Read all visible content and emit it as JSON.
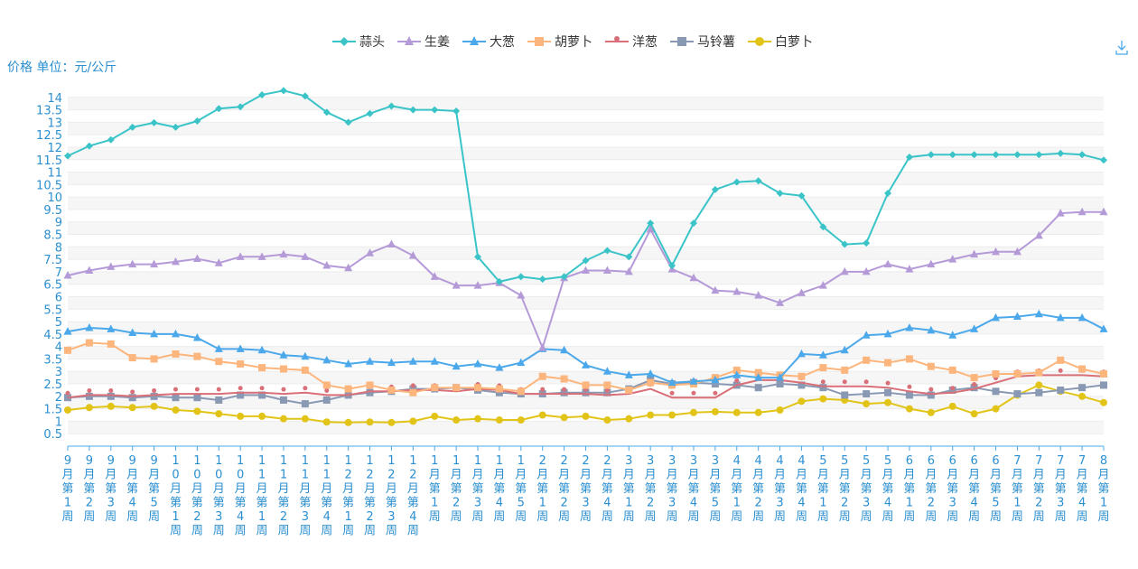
{
  "chart_data": {
    "type": "line",
    "ylabel": "价格 单位：元/公斤",
    "ylim": [
      0,
      14.5
    ],
    "yticks": [
      0.5,
      1,
      1.5,
      2,
      2.5,
      3,
      3.5,
      4,
      4.5,
      5,
      5.5,
      6,
      6.5,
      7,
      7.5,
      8,
      8.5,
      9,
      9.5,
      10,
      10.5,
      11,
      11.5,
      12,
      12.5,
      13,
      13.5,
      14
    ],
    "ytick_labels": [
      "0.5",
      "1",
      "1.5",
      "2",
      "2.5",
      "3",
      "3.5",
      "4",
      "4.5",
      "5",
      "5.5",
      "6",
      "6.5",
      "7",
      "7.5",
      "8",
      "8.5",
      "9",
      "9.5",
      "10",
      "10.5",
      "11",
      "11.5",
      "12",
      "12.5",
      "13",
      "13.5",
      "14"
    ],
    "categories": [
      "9月第1周",
      "9月第2周",
      "9月第3周",
      "9月第4周",
      "9月第5周",
      "10月第1周",
      "10月第2周",
      "10月第3周",
      "10月第4周",
      "11月第1周",
      "11月第2周",
      "11月第3周",
      "11月第4周",
      "12月第1周",
      "12月第2周",
      "12月第3周",
      "12月第4周",
      "1月第1周",
      "1月第2周",
      "1月第3周",
      "1月第4周",
      "1月第5周",
      "2月第1周",
      "2月第2周",
      "2月第3周",
      "2月第4周",
      "3月第1周",
      "3月第2周",
      "3月第3周",
      "3月第4周",
      "3月第5周",
      "4月第1周",
      "4月第2周",
      "4月第3周",
      "4月第4周",
      "5月第1周",
      "5月第2周",
      "5月第3周",
      "5月第4周",
      "6月第1周",
      "6月第2周",
      "6月第3周",
      "6月第4周",
      "6月第5周",
      "7月第1周",
      "7月第2周",
      "7月第3周",
      "7月第4周",
      "8月第1周"
    ],
    "legend_position": "top-center",
    "series": [
      {
        "name": "蒜头",
        "color": "#3ac4c8",
        "marker": "diamond",
        "values": [
          11.65,
          12.05,
          12.3,
          12.8,
          12.98,
          12.8,
          13.05,
          13.55,
          13.62,
          14.1,
          14.27,
          14.05,
          13.4,
          13,
          13.35,
          13.65,
          13.5,
          13.5,
          13.45,
          7.6,
          6.6,
          6.8,
          6.7,
          6.8,
          7.45,
          7.85,
          7.6,
          8.95,
          7.25,
          8.95,
          10.3,
          10.6,
          10.65,
          10.15,
          10.05,
          8.8,
          8.1,
          8.15,
          10.15,
          11.6,
          11.7,
          11.7,
          11.7,
          11.7,
          11.7,
          11.7,
          11.75,
          11.7,
          11.48
        ]
      },
      {
        "name": "生姜",
        "color": "#b59ad8",
        "marker": "triangle",
        "values": [
          6.85,
          7.05,
          7.2,
          7.3,
          7.3,
          7.4,
          7.52,
          7.35,
          7.6,
          7.6,
          7.7,
          7.6,
          7.25,
          7.15,
          7.75,
          8.1,
          7.65,
          6.8,
          6.45,
          6.45,
          6.55,
          6.05,
          3.95,
          6.75,
          7.05,
          7.05,
          7,
          8.7,
          7.1,
          6.75,
          6.25,
          6.2,
          6.05,
          5.75,
          6.15,
          6.45,
          7,
          7,
          7.3,
          7.1,
          7.3,
          7.5,
          7.7,
          7.8,
          7.8,
          8.45,
          9.35,
          9.4,
          9.4
        ]
      },
      {
        "name": "大葱",
        "color": "#4ba8ea",
        "marker": "triangle",
        "values": [
          4.6,
          4.75,
          4.7,
          4.55,
          4.5,
          4.5,
          4.35,
          3.9,
          3.9,
          3.85,
          3.65,
          3.6,
          3.45,
          3.3,
          3.4,
          3.35,
          3.4,
          3.4,
          3.2,
          3.3,
          3.15,
          3.35,
          3.9,
          3.85,
          3.25,
          3,
          2.85,
          2.9,
          2.55,
          2.6,
          2.65,
          2.85,
          2.75,
          2.75,
          3.7,
          3.65,
          3.85,
          4.45,
          4.5,
          4.75,
          4.65,
          4.45,
          4.7,
          5.15,
          5.2,
          5.3,
          5.15,
          5.15,
          4.7
        ]
      },
      {
        "name": "胡萝卜",
        "color": "#fcb57c",
        "marker": "square",
        "values": [
          3.85,
          4.15,
          4.1,
          3.55,
          3.5,
          3.7,
          3.6,
          3.4,
          3.3,
          3.15,
          3.1,
          3.05,
          2.45,
          2.3,
          2.45,
          2.25,
          2.15,
          2.35,
          2.35,
          2.35,
          2.3,
          2.2,
          2.8,
          2.7,
          2.45,
          2.45,
          2.25,
          2.55,
          2.45,
          2.5,
          2.75,
          3.05,
          2.95,
          2.85,
          2.8,
          3.15,
          3.05,
          3.45,
          3.35,
          3.5,
          3.2,
          3.05,
          2.75,
          2.9,
          2.9,
          2.95,
          3.45,
          3.1,
          2.9
        ]
      },
      {
        "name": "洋葱",
        "color": "#d96f78",
        "marker": "pin",
        "values": [
          1.95,
          2.05,
          2.05,
          2,
          2.05,
          2.1,
          2.1,
          2.1,
          2.15,
          2.15,
          2.1,
          2.15,
          2.05,
          2.05,
          2.2,
          2.2,
          2.25,
          2.25,
          2.2,
          2.3,
          2.25,
          2.1,
          2.1,
          2.1,
          2.1,
          2.05,
          2.1,
          2.3,
          1.95,
          1.95,
          1.95,
          2.45,
          2.65,
          2.65,
          2.55,
          2.4,
          2.4,
          2.4,
          2.35,
          2.2,
          2.1,
          2.15,
          2.3,
          2.55,
          2.8,
          2.85,
          2.85,
          2.85,
          2.8
        ]
      },
      {
        "name": "马铃薯",
        "color": "#8a99b3",
        "marker": "square",
        "values": [
          1.95,
          2,
          2,
          1.95,
          2,
          1.95,
          1.95,
          1.85,
          2.05,
          2.05,
          1.85,
          1.7,
          1.85,
          2.05,
          2.15,
          2.2,
          2.3,
          2.3,
          2.35,
          2.25,
          2.15,
          2.1,
          2.1,
          2.15,
          2.15,
          2.15,
          2.3,
          2.65,
          2.5,
          2.55,
          2.5,
          2.45,
          2.35,
          2.5,
          2.45,
          2.35,
          2.05,
          2.1,
          2.15,
          2.05,
          2.05,
          2.25,
          2.35,
          2.2,
          2.1,
          2.15,
          2.25,
          2.35,
          2.45
        ]
      },
      {
        "name": "白萝卜",
        "color": "#e2c418",
        "marker": "circle",
        "values": [
          1.45,
          1.55,
          1.6,
          1.55,
          1.6,
          1.45,
          1.4,
          1.3,
          1.2,
          1.2,
          1.1,
          1.1,
          0.97,
          0.95,
          0.97,
          0.95,
          1,
          1.2,
          1.05,
          1.1,
          1.05,
          1.05,
          1.25,
          1.15,
          1.2,
          1.05,
          1.1,
          1.25,
          1.25,
          1.35,
          1.38,
          1.35,
          1.35,
          1.45,
          1.8,
          1.9,
          1.85,
          1.7,
          1.75,
          1.5,
          1.35,
          1.6,
          1.3,
          1.5,
          2.05,
          2.45,
          2.2,
          2,
          1.75
        ]
      }
    ]
  }
}
